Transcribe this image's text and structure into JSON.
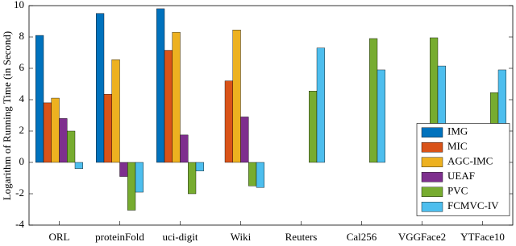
{
  "chart_data": {
    "type": "bar",
    "y_label": "Logarithm of Running Time (in Second)",
    "categories": [
      "ORL",
      "proteinFold",
      "uci-digit",
      "Wiki",
      "Reuters",
      "Cal256",
      "VGGFace2",
      "YTFace10"
    ],
    "series": [
      {
        "name": "IMG",
        "color": "#0072bd",
        "values": [
          8.1,
          9.5,
          9.8,
          null,
          null,
          null,
          null,
          null
        ]
      },
      {
        "name": "MIC",
        "color": "#d95319",
        "values": [
          3.8,
          4.35,
          7.15,
          5.2,
          null,
          null,
          null,
          null
        ]
      },
      {
        "name": "AGC-IMC",
        "color": "#edb120",
        "values": [
          4.1,
          6.55,
          8.3,
          8.45,
          null,
          null,
          null,
          null
        ]
      },
      {
        "name": "UEAF",
        "color": "#7e2f8e",
        "values": [
          2.8,
          -0.9,
          1.75,
          2.9,
          null,
          null,
          null,
          null
        ]
      },
      {
        "name": "PVC",
        "color": "#77ac30",
        "values": [
          2.0,
          -3.05,
          -2.0,
          -1.5,
          4.55,
          7.9,
          7.95,
          4.45
        ]
      },
      {
        "name": "FCMVC-IV",
        "color": "#4dbeee",
        "values": [
          -0.4,
          -1.9,
          -0.55,
          -1.6,
          7.3,
          5.9,
          6.15,
          5.9
        ]
      }
    ],
    "ylim": [
      -4,
      10
    ],
    "yticks": [
      -4,
      -2,
      0,
      2,
      4,
      6,
      8,
      10
    ],
    "grid": false,
    "legend": "right"
  }
}
